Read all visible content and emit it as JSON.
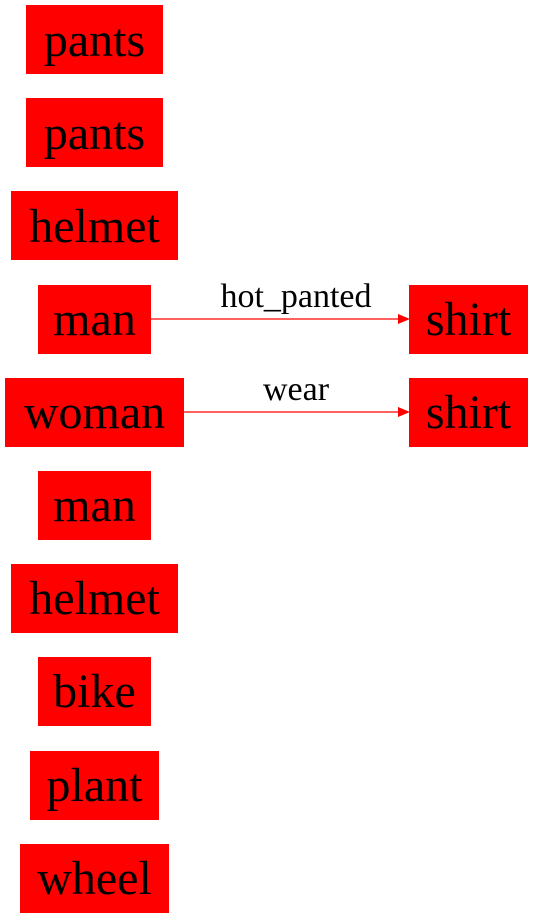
{
  "colors": {
    "node_fill": "#ff0000",
    "node_text": "#000000",
    "edge": "#ff0000",
    "background": "#ffffff"
  },
  "nodes": [
    {
      "id": "n0",
      "label": "pants"
    },
    {
      "id": "n1",
      "label": "pants"
    },
    {
      "id": "n2",
      "label": "helmet"
    },
    {
      "id": "n3",
      "label": "man"
    },
    {
      "id": "n4",
      "label": "woman"
    },
    {
      "id": "n5",
      "label": "man"
    },
    {
      "id": "n6",
      "label": "helmet"
    },
    {
      "id": "n7",
      "label": "bike"
    },
    {
      "id": "n8",
      "label": "plant"
    },
    {
      "id": "n9",
      "label": "wheel"
    },
    {
      "id": "n10",
      "label": "shirt"
    },
    {
      "id": "n11",
      "label": "shirt"
    }
  ],
  "edges": [
    {
      "from": "n3",
      "to": "n10",
      "label": "hot_panted"
    },
    {
      "from": "n4",
      "to": "n11",
      "label": "wear"
    }
  ]
}
